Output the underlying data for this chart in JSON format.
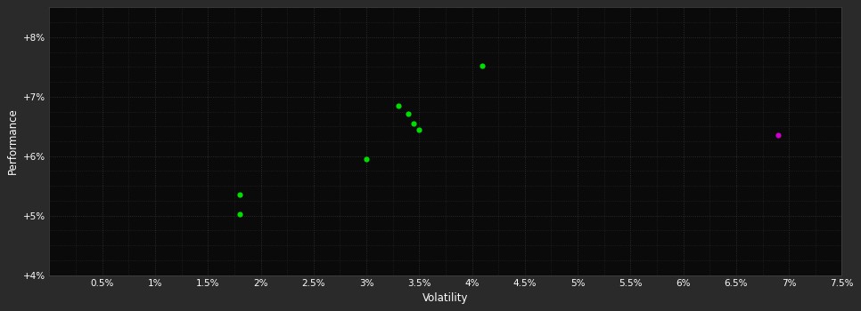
{
  "background_color": "#2a2a2a",
  "plot_bg_color": "#0a0a0a",
  "grid_color": "#2e2e2e",
  "grid_color_major": "#333333",
  "text_color": "#ffffff",
  "xlabel": "Volatility",
  "ylabel": "Performance",
  "xlim": [
    0.0,
    0.075
  ],
  "ylim": [
    0.04,
    0.085
  ],
  "xticks_major": [
    0.005,
    0.01,
    0.015,
    0.02,
    0.025,
    0.03,
    0.035,
    0.04,
    0.045,
    0.05,
    0.055,
    0.06,
    0.065,
    0.07,
    0.075
  ],
  "xtick_labels": [
    "0.5%",
    "1%",
    "1.5%",
    "2%",
    "2.5%",
    "3%",
    "3.5%",
    "4%",
    "4.5%",
    "5%",
    "5.5%",
    "6%",
    "6.5%",
    "7%",
    "7.5%"
  ],
  "yticks_major": [
    0.04,
    0.05,
    0.06,
    0.07,
    0.08
  ],
  "ytick_labels": [
    "+4%",
    "+5%",
    "+6%",
    "+7%",
    "+8%"
  ],
  "yticks_minor": [
    0.04,
    0.0425,
    0.045,
    0.0475,
    0.05,
    0.0525,
    0.055,
    0.0575,
    0.06,
    0.0625,
    0.065,
    0.0675,
    0.07,
    0.0725,
    0.075,
    0.0775,
    0.08,
    0.0825,
    0.085
  ],
  "green_points": [
    [
      0.018,
      0.0535
    ],
    [
      0.018,
      0.0502
    ],
    [
      0.03,
      0.0595
    ],
    [
      0.033,
      0.0685
    ],
    [
      0.034,
      0.0672
    ],
    [
      0.0345,
      0.0655
    ],
    [
      0.035,
      0.0645
    ],
    [
      0.041,
      0.0752
    ]
  ],
  "magenta_points": [
    [
      0.069,
      0.0635
    ]
  ],
  "green_color": "#00dd00",
  "magenta_color": "#cc00cc",
  "marker_size": 20
}
